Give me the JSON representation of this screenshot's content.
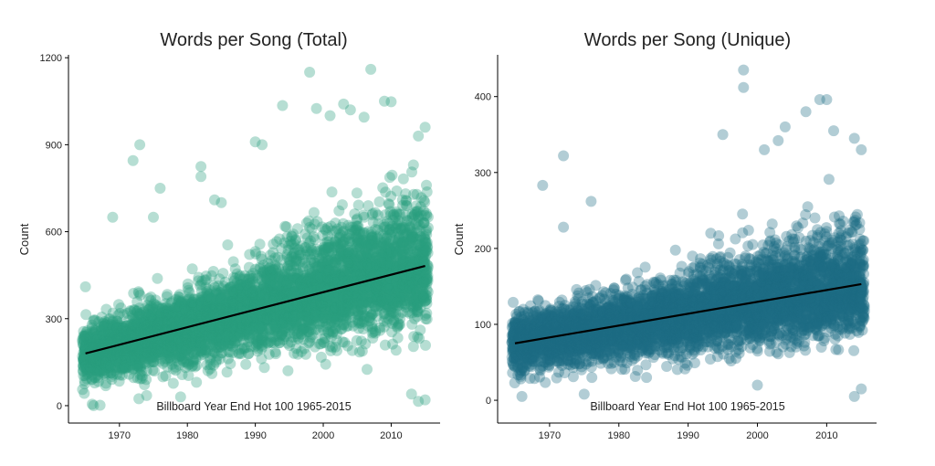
{
  "chart_data": [
    {
      "type": "scatter",
      "title": "Words per Song (Total)",
      "xlabel": "",
      "ylabel": "Count",
      "annotation": "Billboard Year End Hot 100 1965-2015",
      "xlim": [
        1962.5,
        2017.2
      ],
      "ylim": [
        -60,
        1210
      ],
      "xticks": [
        1970,
        1980,
        1990,
        2000,
        2010
      ],
      "yticks": [
        0,
        300,
        600,
        900,
        1200
      ],
      "point_color": "#2a9d7f",
      "point_alpha": 0.34,
      "grid": false,
      "trend": {
        "x": [
          1965,
          2015
        ],
        "y": [
          180,
          482
        ]
      },
      "distribution": {
        "x_start": 1965,
        "x_end": 2015,
        "mean_start": 180,
        "mean_end": 482,
        "spread_start": 45,
        "spread_end": 95,
        "points_per_year": 100
      },
      "outliers": [
        [
          1973,
          900
        ],
        [
          1972,
          845
        ],
        [
          1976,
          750
        ],
        [
          1982,
          825
        ],
        [
          1982,
          790
        ],
        [
          1984,
          710
        ],
        [
          1985,
          700
        ],
        [
          1990,
          910
        ],
        [
          1991,
          900
        ],
        [
          1994,
          1035
        ],
        [
          1998,
          1150
        ],
        [
          1999,
          1025
        ],
        [
          2001,
          1000
        ],
        [
          2003,
          1040
        ],
        [
          2004,
          1020
        ],
        [
          2006,
          995
        ],
        [
          2007,
          1160
        ],
        [
          2009,
          1050
        ],
        [
          2010,
          1048
        ],
        [
          2015,
          960
        ],
        [
          2014,
          930
        ],
        [
          1969,
          650
        ],
        [
          1975,
          650
        ],
        [
          1965,
          410
        ],
        [
          1966,
          5
        ],
        [
          1974,
          35
        ],
        [
          1979,
          30
        ],
        [
          2014,
          15
        ],
        [
          2013,
          40
        ],
        [
          2015,
          20
        ]
      ]
    },
    {
      "type": "scatter",
      "title": "Words per Song (Unique)",
      "xlabel": "",
      "ylabel": "Count",
      "annotation": "Billboard Year End Hot 100 1965-2015",
      "xlim": [
        1962.5,
        2017.2
      ],
      "ylim": [
        -30,
        455
      ],
      "xticks": [
        1970,
        1980,
        1990,
        2000,
        2010
      ],
      "yticks": [
        0,
        100,
        200,
        300,
        400
      ],
      "point_color": "#1e6b84",
      "point_alpha": 0.34,
      "grid": false,
      "trend": {
        "x": [
          1965,
          2015
        ],
        "y": [
          75,
          153
        ]
      },
      "distribution": {
        "x_start": 1965,
        "x_end": 2015,
        "mean_start": 75,
        "mean_end": 150,
        "spread_start": 18,
        "spread_end": 30,
        "points_per_year": 100
      },
      "outliers": [
        [
          1998,
          435
        ],
        [
          1998,
          412
        ],
        [
          2010,
          396
        ],
        [
          2009,
          396
        ],
        [
          2011,
          355
        ],
        [
          2014,
          345
        ],
        [
          1972,
          322
        ],
        [
          1969,
          283
        ],
        [
          1976,
          262
        ],
        [
          1972,
          228
        ],
        [
          2004,
          360
        ],
        [
          2003,
          342
        ],
        [
          2001,
          330
        ],
        [
          1995,
          350
        ],
        [
          2015,
          330
        ],
        [
          2007,
          380
        ],
        [
          1966,
          5
        ],
        [
          1975,
          8
        ],
        [
          2014,
          5
        ],
        [
          2015,
          15
        ],
        [
          2000,
          20
        ],
        [
          1984,
          30
        ]
      ]
    }
  ]
}
